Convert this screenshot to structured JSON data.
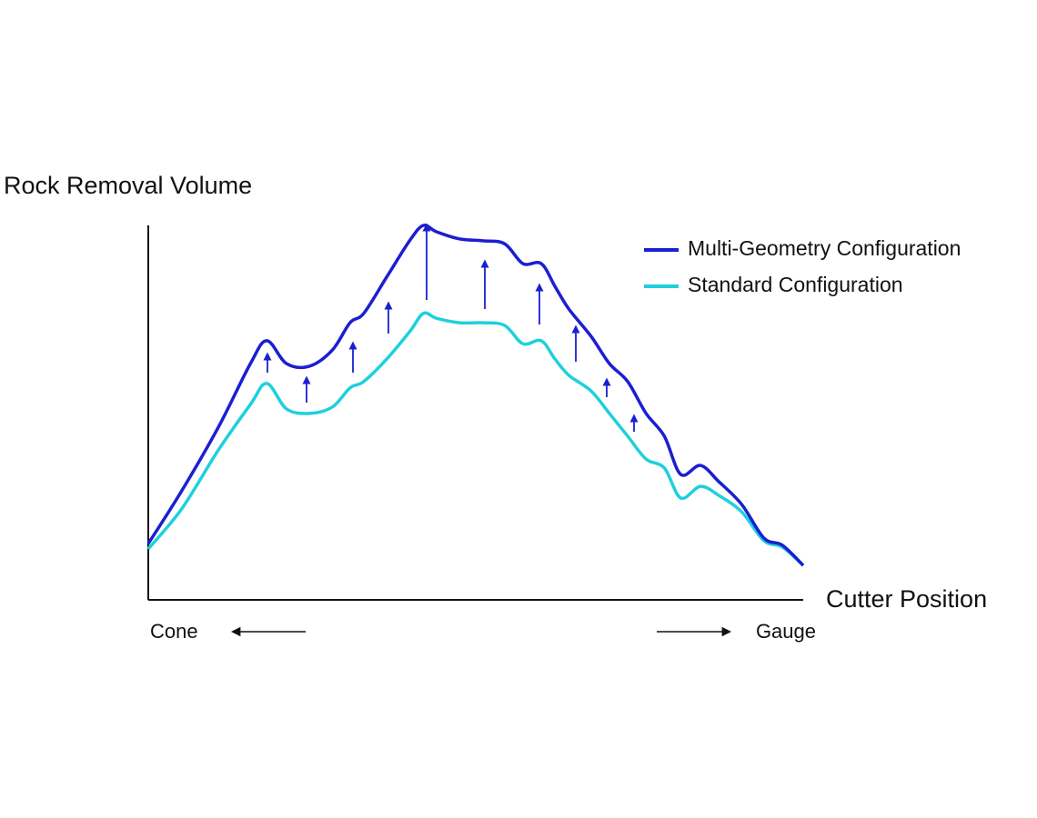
{
  "chart_data": {
    "type": "line",
    "y_label": "Rock Removal Volume",
    "x_label": "Cutter Position",
    "x_start_label": "Cone",
    "x_end_label": "Gauge",
    "x": [
      0,
      5.1,
      10.7,
      15.6,
      18.1,
      21.1,
      24.6,
      28.1,
      30.8,
      32.9,
      36.4,
      39.9,
      42,
      44,
      47.5,
      51,
      54.4,
      57.2,
      60,
      62.1,
      64.2,
      67.6,
      70.4,
      73.2,
      76,
      78.8,
      81.3,
      84.3,
      87.1,
      90.6,
      94,
      96.8,
      100
    ],
    "series": [
      {
        "name": "Multi-Geometry Configuration",
        "color": "#1a1fd1",
        "values": [
          15.0,
          29.1,
          46.1,
          63.1,
          69.2,
          63.1,
          62.4,
          66.7,
          74.0,
          76.5,
          86.2,
          95.9,
          100,
          98.3,
          96.4,
          95.9,
          95.1,
          89.8,
          89.8,
          83.7,
          77.7,
          70.4,
          63.1,
          58.3,
          49.8,
          43.7,
          33.5,
          35.9,
          31.6,
          25.5,
          16.5,
          14.6,
          9.2
        ]
      },
      {
        "name": "Standard Configuration",
        "color": "#1ed0dc",
        "values": [
          13.6,
          24.3,
          40.0,
          52.2,
          57.8,
          51.0,
          49.8,
          51.5,
          56.6,
          58.3,
          64.3,
          71.6,
          76.5,
          75.2,
          74.0,
          74.0,
          73.3,
          68.4,
          69.2,
          64.3,
          60.0,
          55.8,
          49.8,
          43.7,
          37.6,
          35.2,
          27.2,
          30.3,
          27.9,
          23.5,
          15.8,
          14.1,
          9.2
        ]
      }
    ],
    "xlim": [
      0,
      100
    ],
    "ylim": [
      0,
      100
    ],
    "legend": "upper right"
  }
}
